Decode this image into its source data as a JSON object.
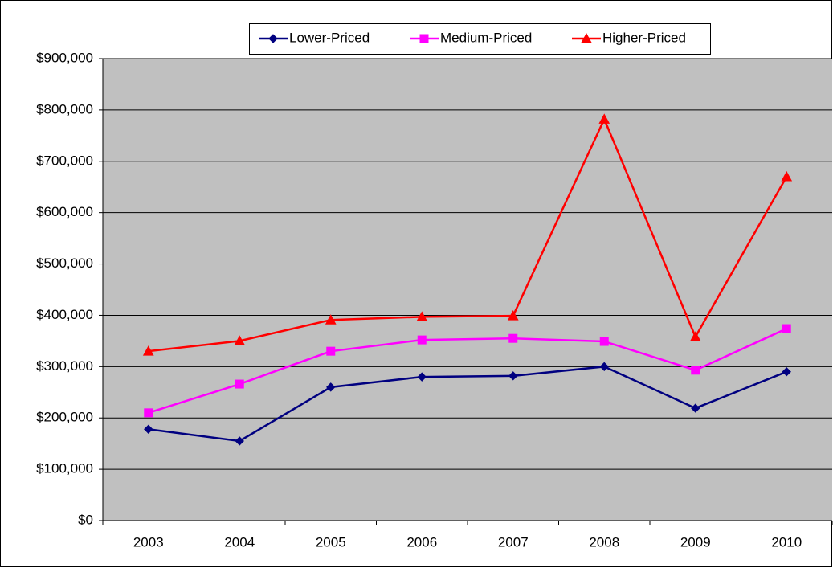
{
  "chart_data": {
    "type": "line",
    "categories": [
      "2003",
      "2004",
      "2005",
      "2006",
      "2007",
      "2008",
      "2009",
      "2010"
    ],
    "series": [
      {
        "name": "Lower-Priced",
        "color": "#000080",
        "marker": "diamond",
        "values": [
          178000,
          155000,
          260000,
          280000,
          282000,
          300000,
          219000,
          290000
        ]
      },
      {
        "name": "Medium-Priced",
        "color": "#ff00ff",
        "marker": "square",
        "values": [
          210000,
          266000,
          330000,
          352000,
          355000,
          349000,
          293000,
          374000
        ]
      },
      {
        "name": "Higher-Priced",
        "color": "#ff0000",
        "marker": "triangle",
        "values": [
          330000,
          350000,
          391000,
          397000,
          399000,
          782000,
          358000,
          670000
        ]
      }
    ],
    "ylim": [
      0,
      900000
    ],
    "yticks": [
      {
        "value": 0,
        "label": "$0"
      },
      {
        "value": 100000,
        "label": "$100,000"
      },
      {
        "value": 200000,
        "label": "$200,000"
      },
      {
        "value": 300000,
        "label": "$300,000"
      },
      {
        "value": 400000,
        "label": "$400,000"
      },
      {
        "value": 500000,
        "label": "$500,000"
      },
      {
        "value": 600000,
        "label": "$600,000"
      },
      {
        "value": 700000,
        "label": "$700,000"
      },
      {
        "value": 800000,
        "label": "$800,000"
      },
      {
        "value": 900000,
        "label": "$900,000"
      }
    ],
    "grid": true,
    "legend": "top",
    "plot_background": "#c0c0c0"
  }
}
